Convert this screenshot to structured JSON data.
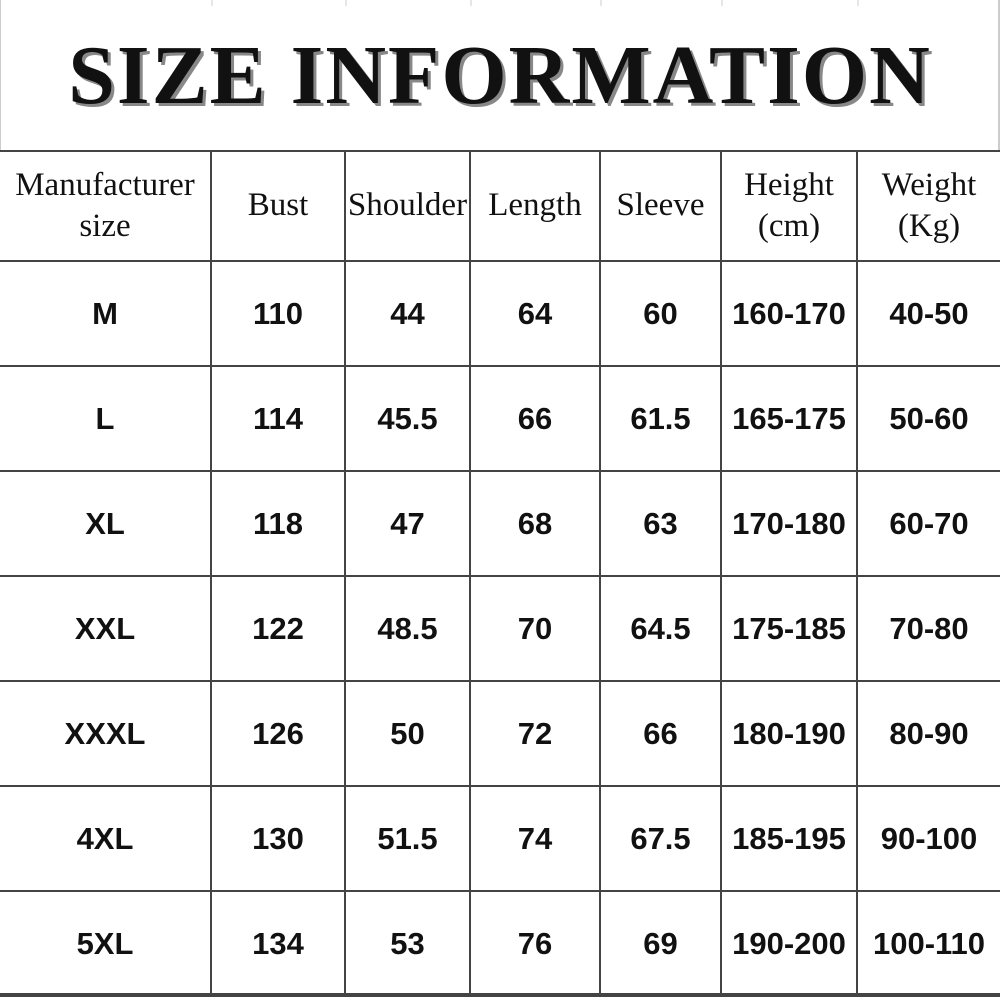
{
  "header": {
    "title": "SIZE INFORMATION"
  },
  "table": {
    "columns": [
      "Manufacturer\nsize",
      "Bust",
      "Shoulder",
      "Length",
      "Sleeve",
      "Height\n(cm)",
      "Weight\n(Kg)"
    ],
    "rows": [
      [
        "M",
        110,
        44,
        64,
        60,
        "160-170",
        "40-50"
      ],
      [
        "L",
        114,
        45.5,
        66,
        61.5,
        "165-175",
        "50-60"
      ],
      [
        "XL",
        118,
        47,
        68,
        63,
        "170-180",
        "60-70"
      ],
      [
        "XXL",
        122,
        48.5,
        70,
        64.5,
        "175-185",
        "70-80"
      ],
      [
        "XXXL",
        126,
        50,
        72,
        66,
        "180-190",
        "80-90"
      ],
      [
        "4XL",
        130,
        51.5,
        74,
        67.5,
        "185-195",
        "90-100"
      ],
      [
        "5XL",
        134,
        53,
        76,
        69,
        "190-200",
        "100-110"
      ]
    ]
  }
}
